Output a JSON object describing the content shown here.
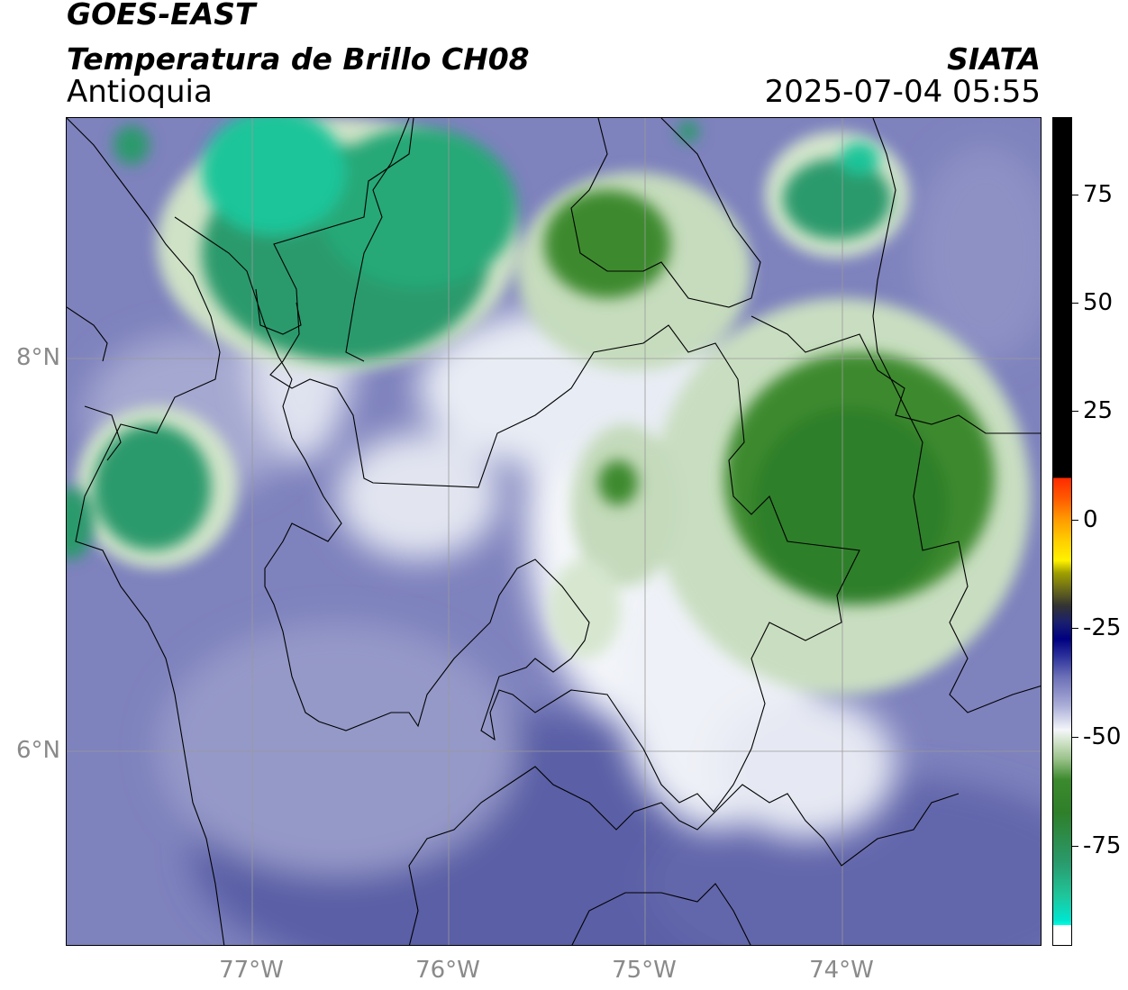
{
  "header": {
    "satellite": "GOES-EAST",
    "product": "Temperatura de Brillo CH08",
    "region": "Antioquia",
    "organization": "SIATA",
    "timestamp": "2025-07-04 05:55"
  },
  "map": {
    "lat_labels": [
      {
        "text": "8°N",
        "value": 8
      },
      {
        "text": "6°N",
        "value": 6
      }
    ],
    "lon_labels": [
      {
        "text": "77°W",
        "value": -77
      },
      {
        "text": "76°W",
        "value": -76
      },
      {
        "text": "75°W",
        "value": -75
      },
      {
        "text": "74°W",
        "value": -74
      }
    ],
    "extent": {
      "lon_min": -77.95,
      "lon_max": -72.99,
      "lat_min": 5.0,
      "lat_max": 9.22
    },
    "colors": {
      "background": "#7e82bd",
      "cold_cloud": "#2a9a6c",
      "very_cold_core": "#1fc59a",
      "cloud_edge": "#3c8a2e",
      "clear_band": "#f4f6fa",
      "low_band": "#5a5ea6",
      "borders": "#000000",
      "gridlines": "#9a9a9a"
    }
  },
  "colorbar": {
    "unit_hint": "",
    "tick_labels": [
      {
        "text": "75",
        "value": 75
      },
      {
        "text": "50",
        "value": 50
      },
      {
        "text": "25",
        "value": 25
      },
      {
        "text": "0",
        "value": 0
      },
      {
        "text": "-25",
        "value": -25
      },
      {
        "text": "-50",
        "value": -50
      },
      {
        "text": "-75",
        "value": -75
      }
    ],
    "range": [
      -98,
      91
    ]
  }
}
